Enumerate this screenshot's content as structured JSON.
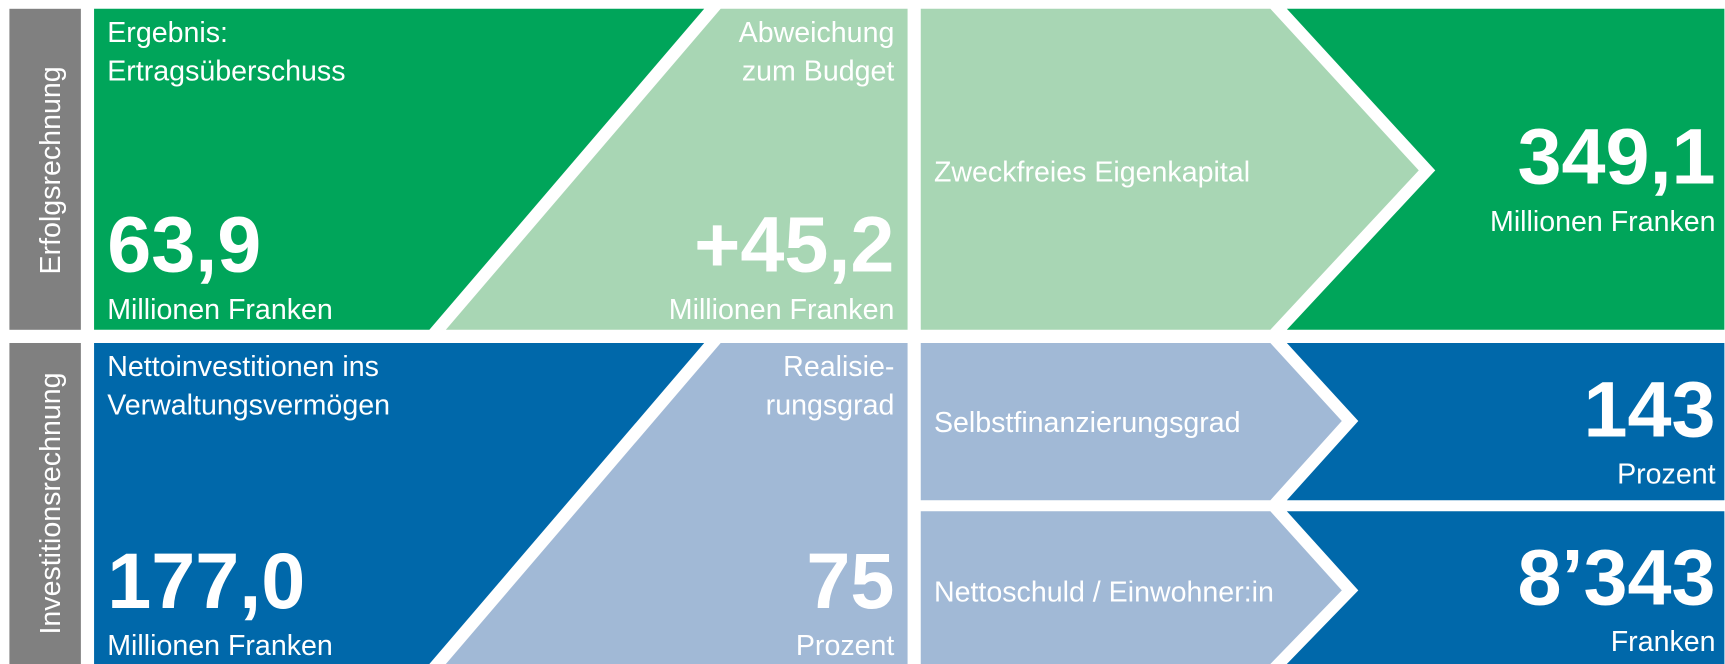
{
  "sections": [
    {
      "name": "Erfolgsrechnung",
      "main": {
        "label": [
          "Ergebnis:",
          "Ertragsüberschuss"
        ],
        "value": "63,9",
        "unit": "Millionen Franken"
      },
      "secondary": {
        "label": [
          "Abweichung",
          "zum Budget"
        ],
        "value": "+45,2",
        "unit": "Millionen Franken"
      },
      "indicators": [
        {
          "label": "Zweckfreies Eigenkapital",
          "value": "349,1",
          "unit": "Millionen Franken"
        }
      ]
    },
    {
      "name": "Investitionsrechnung",
      "main": {
        "label": [
          "Nettoinvestitionen ins",
          "Verwaltungsvermögen"
        ],
        "value": "177,0",
        "unit": "Millionen Franken"
      },
      "secondary": {
        "label": [
          "Realisie-",
          "rungsgrad"
        ],
        "value": "75",
        "unit": "Prozent"
      },
      "indicators": [
        {
          "label": "Selbstfinanzierungsgrad",
          "value": "143",
          "unit": "Prozent"
        },
        {
          "label": "Nettoschuld / Einwohner:in",
          "value": "8’343",
          "unit": "Franken"
        }
      ]
    }
  ]
}
